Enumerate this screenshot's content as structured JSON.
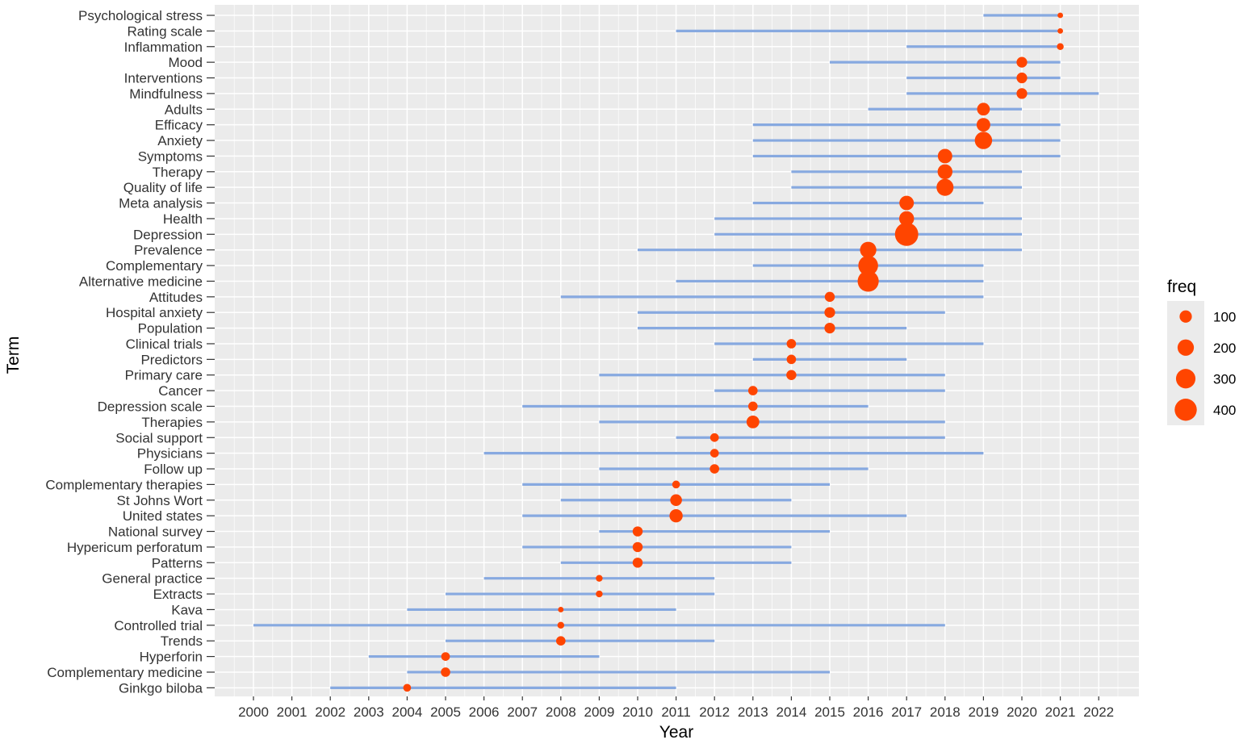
{
  "chart_data": {
    "type": "scatter",
    "xlabel": "Year",
    "ylabel": "Term",
    "xlim": [
      1999.0,
      2023.0
    ],
    "x_ticks": [
      2000,
      2001,
      2002,
      2003,
      2004,
      2005,
      2006,
      2007,
      2008,
      2009,
      2010,
      2011,
      2012,
      2013,
      2014,
      2015,
      2016,
      2017,
      2018,
      2019,
      2020,
      2021,
      2022
    ],
    "grid": true,
    "colors": {
      "point": "#FF4500",
      "segment": "#87A9E0",
      "panel": "#EBEBEB",
      "grid": "#FFFFFF"
    },
    "legend": {
      "title": "freq",
      "position": "right",
      "sizes": [
        100,
        200,
        300,
        400
      ]
    },
    "terms": [
      {
        "term": "Psychological stress",
        "start": 2019,
        "end": 2021,
        "peak": 2021,
        "freq": 10
      },
      {
        "term": "Rating scale",
        "start": 2011,
        "end": 2021,
        "peak": 2021,
        "freq": 10
      },
      {
        "term": "Inflammation",
        "start": 2017,
        "end": 2021,
        "peak": 2021,
        "freq": 20
      },
      {
        "term": "Mood",
        "start": 2015,
        "end": 2021,
        "peak": 2020,
        "freq": 70
      },
      {
        "term": "Interventions",
        "start": 2017,
        "end": 2021,
        "peak": 2020,
        "freq": 70
      },
      {
        "term": "Mindfulness",
        "start": 2017,
        "end": 2022,
        "peak": 2020,
        "freq": 70
      },
      {
        "term": "Adults",
        "start": 2016,
        "end": 2020,
        "peak": 2019,
        "freq": 110
      },
      {
        "term": "Efficacy",
        "start": 2013,
        "end": 2021,
        "peak": 2019,
        "freq": 130
      },
      {
        "term": "Anxiety",
        "start": 2013,
        "end": 2021,
        "peak": 2019,
        "freq": 230
      },
      {
        "term": "Symptoms",
        "start": 2013,
        "end": 2021,
        "peak": 2018,
        "freq": 150
      },
      {
        "term": "Therapy",
        "start": 2014,
        "end": 2020,
        "peak": 2018,
        "freq": 160
      },
      {
        "term": "Quality of life",
        "start": 2014,
        "end": 2020,
        "peak": 2018,
        "freq": 220
      },
      {
        "term": "Meta analysis",
        "start": 2013,
        "end": 2019,
        "peak": 2017,
        "freq": 150
      },
      {
        "term": "Health",
        "start": 2012,
        "end": 2020,
        "peak": 2017,
        "freq": 160
      },
      {
        "term": "Depression",
        "start": 2012,
        "end": 2020,
        "peak": 2017,
        "freq": 450
      },
      {
        "term": "Prevalence",
        "start": 2010,
        "end": 2020,
        "peak": 2016,
        "freq": 200
      },
      {
        "term": "Complementary",
        "start": 2013,
        "end": 2019,
        "peak": 2016,
        "freq": 310
      },
      {
        "term": "Alternative medicine",
        "start": 2011,
        "end": 2019,
        "peak": 2016,
        "freq": 360
      },
      {
        "term": "Attitudes",
        "start": 2008,
        "end": 2019,
        "peak": 2015,
        "freq": 60
      },
      {
        "term": "Hospital anxiety",
        "start": 2010,
        "end": 2018,
        "peak": 2015,
        "freq": 70
      },
      {
        "term": "Population",
        "start": 2010,
        "end": 2017,
        "peak": 2015,
        "freq": 70
      },
      {
        "term": "Clinical trials",
        "start": 2012,
        "end": 2019,
        "peak": 2014,
        "freq": 50
      },
      {
        "term": "Predictors",
        "start": 2013,
        "end": 2017,
        "peak": 2014,
        "freq": 50
      },
      {
        "term": "Primary care",
        "start": 2009,
        "end": 2018,
        "peak": 2014,
        "freq": 60
      },
      {
        "term": "Cancer",
        "start": 2012,
        "end": 2018,
        "peak": 2013,
        "freq": 50
      },
      {
        "term": "Depression scale",
        "start": 2007,
        "end": 2016,
        "peak": 2013,
        "freq": 50
      },
      {
        "term": "Therapies",
        "start": 2009,
        "end": 2018,
        "peak": 2013,
        "freq": 110
      },
      {
        "term": "Social support",
        "start": 2011,
        "end": 2018,
        "peak": 2012,
        "freq": 40
      },
      {
        "term": "Physicians",
        "start": 2006,
        "end": 2019,
        "peak": 2012,
        "freq": 40
      },
      {
        "term": "Follow up",
        "start": 2009,
        "end": 2016,
        "peak": 2012,
        "freq": 50
      },
      {
        "term": "Complementary therapies",
        "start": 2007,
        "end": 2015,
        "peak": 2011,
        "freq": 30
      },
      {
        "term": "St Johns Wort",
        "start": 2008,
        "end": 2014,
        "peak": 2011,
        "freq": 90
      },
      {
        "term": "United states",
        "start": 2007,
        "end": 2017,
        "peak": 2011,
        "freq": 120
      },
      {
        "term": "National survey",
        "start": 2009,
        "end": 2015,
        "peak": 2010,
        "freq": 60
      },
      {
        "term": "Hypericum perforatum",
        "start": 2007,
        "end": 2014,
        "peak": 2010,
        "freq": 60
      },
      {
        "term": "Patterns",
        "start": 2008,
        "end": 2014,
        "peak": 2010,
        "freq": 60
      },
      {
        "term": "General practice",
        "start": 2006,
        "end": 2012,
        "peak": 2009,
        "freq": 20
      },
      {
        "term": "Extracts",
        "start": 2005,
        "end": 2012,
        "peak": 2009,
        "freq": 20
      },
      {
        "term": "Kava",
        "start": 2004,
        "end": 2011,
        "peak": 2008,
        "freq": 10
      },
      {
        "term": "Controlled trial",
        "start": 2000,
        "end": 2018,
        "peak": 2008,
        "freq": 20
      },
      {
        "term": "Trends",
        "start": 2005,
        "end": 2012,
        "peak": 2008,
        "freq": 50
      },
      {
        "term": "Hyperforin",
        "start": 2003,
        "end": 2009,
        "peak": 2005,
        "freq": 40
      },
      {
        "term": "Complementary medicine",
        "start": 2004,
        "end": 2015,
        "peak": 2005,
        "freq": 50
      },
      {
        "term": "Ginkgo biloba",
        "start": 2002,
        "end": 2011,
        "peak": 2004,
        "freq": 30
      }
    ]
  }
}
